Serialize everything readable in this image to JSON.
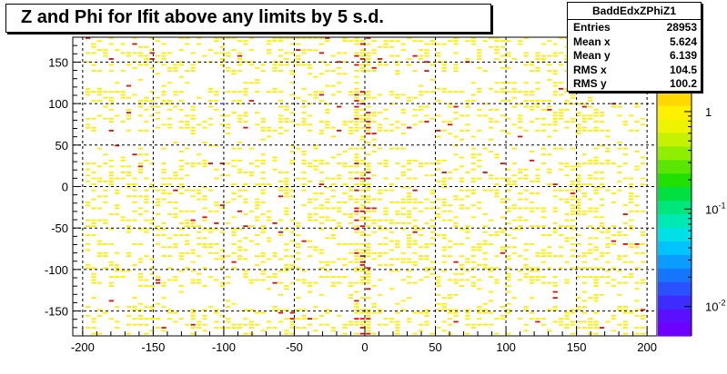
{
  "chart_data": {
    "type": "heatmap",
    "title": "Z and Phi for Ifit above any limits by 5 s.d.",
    "xlim": [
      -207,
      207
    ],
    "ylim": [
      -180,
      180
    ],
    "x_ticks": [
      -200,
      -150,
      -100,
      -50,
      0,
      50,
      100,
      150,
      200
    ],
    "y_ticks": [
      -150,
      -100,
      -50,
      0,
      50,
      100,
      150
    ],
    "grid": true,
    "z_scale": "log",
    "z_range": [
      0.005,
      1.6
    ],
    "z_ticks": [
      {
        "value": 1,
        "label": "1"
      },
      {
        "value": 0.1,
        "label": "10^-1"
      },
      {
        "value": 0.01,
        "label": "10^-2"
      }
    ],
    "stats": {
      "name": "BaddEdxZPhiZ1",
      "entries": [
        {
          "label": "Entries",
          "value": "28953"
        },
        {
          "label": "Mean x",
          "value": "5.624"
        },
        {
          "label": "Mean y",
          "value": "6.139"
        },
        {
          "label": "RMS x",
          "value": "104.5"
        },
        {
          "label": "RMS y",
          "value": "100.2"
        }
      ]
    },
    "bins": {
      "x_width": 4.14,
      "y_width": 3.6,
      "dominant_value": 1,
      "hot_value": 2
    },
    "colors": {
      "low_content": "#ffee00",
      "hot_content": "#dd1100"
    }
  }
}
